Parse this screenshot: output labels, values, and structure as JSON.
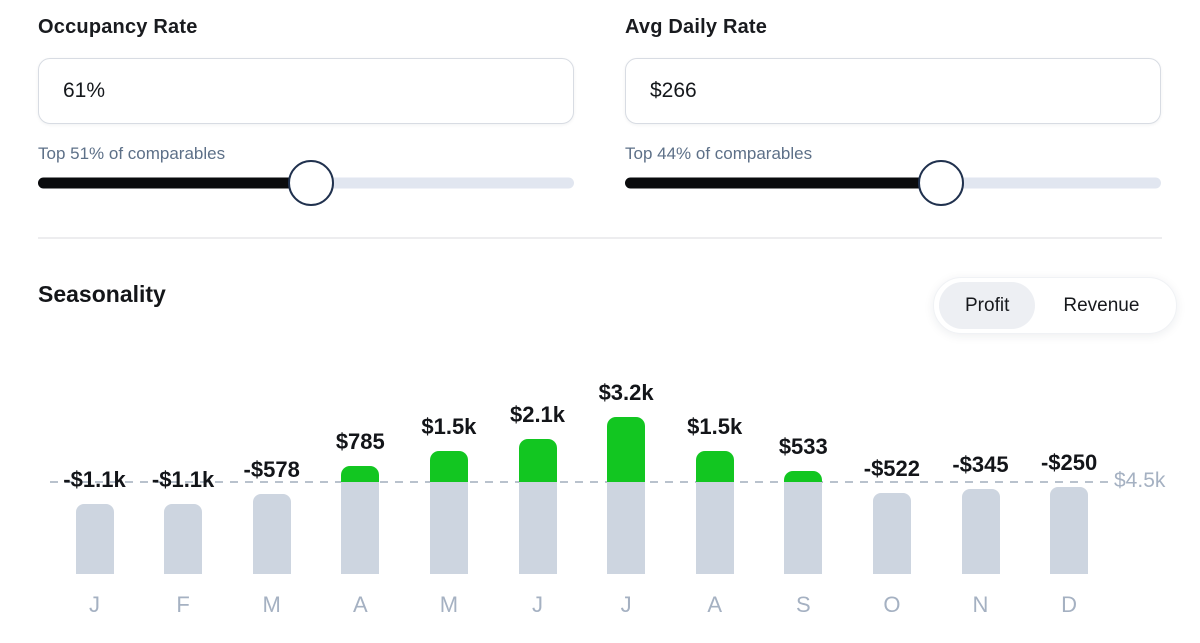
{
  "metrics": [
    {
      "label": "Occupancy Rate",
      "value": "61%",
      "caption": "Top 51% of comparables",
      "slider_pos_pct": 51
    },
    {
      "label": "Avg Daily Rate",
      "value": "$266",
      "caption": "Top 44% of comparables",
      "slider_pos_pct": 59
    }
  ],
  "seasonality": {
    "title": "Seasonality",
    "toggle": {
      "options": [
        "Profit",
        "Revenue"
      ],
      "selected": "Profit"
    }
  },
  "chart_data": {
    "type": "bar",
    "title": "Seasonality (Profit view)",
    "categories": [
      "J",
      "F",
      "M",
      "A",
      "M",
      "J",
      "J",
      "A",
      "S",
      "O",
      "N",
      "D"
    ],
    "series": [
      {
        "name": "Profit",
        "values": [
          -1100,
          -1100,
          -578,
          785,
          1500,
          2100,
          3200,
          1500,
          533,
          -522,
          -345,
          -250
        ],
        "labels": [
          "-$1.1k",
          "-$1.1k",
          "-$578",
          "$785",
          "$1.5k",
          "$2.1k",
          "$3.2k",
          "$1.5k",
          "$533",
          "-$522",
          "-$345",
          "-$250"
        ]
      }
    ],
    "reference_line": {
      "value": 4500,
      "label": "$4.5k"
    },
    "render_hint": "gray bar height = 4500 + profit when negative, capped at reference line; green cap above line = positive profit",
    "grid": false,
    "legend_position": "none"
  },
  "colors": {
    "positive_green": "#12c621",
    "bar_gray": "#cdd5e0",
    "ref_line_gray": "#b9c2cd",
    "slider_fill_black": "#0a0b0d",
    "slider_track_gray": "#e1e6f0",
    "handle_border_navy": "#20314e",
    "caption_slate": "#5d7088",
    "axis_muted": "#a5b1c2"
  }
}
